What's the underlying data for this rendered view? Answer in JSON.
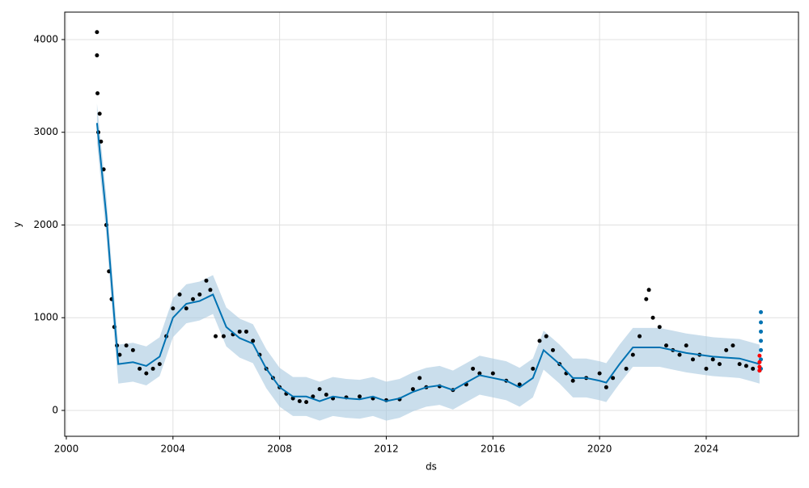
{
  "chart_data": {
    "type": "forecast",
    "xlabel": "ds",
    "ylabel": "y",
    "xlim": [
      1999.94,
      2027.46
    ],
    "ylim": [
      -279,
      4296
    ],
    "xticks": [
      2000,
      2004,
      2008,
      2012,
      2016,
      2020,
      2024
    ],
    "yticks": [
      0,
      1000,
      2000,
      3000,
      4000
    ],
    "grid": true,
    "band_color": "#a6c8e0",
    "series": [
      {
        "mark": "points",
        "color": "#000000",
        "x": [
          2001.15,
          2001.15,
          2001.17,
          2001.2,
          2001.25,
          2001.3,
          2001.4,
          2001.5,
          2001.6,
          2001.7,
          2001.8,
          2001.9,
          2002.0,
          2002.25,
          2002.5,
          2002.75,
          2003.0,
          2003.25,
          2003.5,
          2003.75,
          2004.0,
          2004.25,
          2004.5,
          2004.75,
          2005.0,
          2005.25,
          2005.4,
          2005.6,
          2005.9,
          2006.25,
          2006.5,
          2006.75,
          2007.0,
          2007.25,
          2007.5,
          2007.75,
          2008.0,
          2008.25,
          2008.5,
          2008.75,
          2009.0,
          2009.25,
          2009.5,
          2009.75,
          2010.0,
          2010.5,
          2011.0,
          2011.5,
          2012.0,
          2012.5,
          2013.0,
          2013.25,
          2013.5,
          2014.0,
          2014.5,
          2015.0,
          2015.25,
          2015.5,
          2016.0,
          2016.5,
          2017.0,
          2017.5,
          2017.75,
          2018.0,
          2018.25,
          2018.5,
          2018.75,
          2019.0,
          2019.5,
          2020.0,
          2020.25,
          2020.5,
          2021.0,
          2021.25,
          2021.5,
          2021.75,
          2021.85,
          2022.0,
          2022.25,
          2022.5,
          2022.75,
          2023.0,
          2023.25,
          2023.5,
          2023.75,
          2024.0,
          2024.25,
          2024.5,
          2024.75,
          2025.0,
          2025.25,
          2025.5,
          2025.75,
          2026.0
        ],
        "values": [
          4080,
          3830,
          3420,
          3000,
          3200,
          2900,
          2600,
          2000,
          1500,
          1200,
          900,
          700,
          600,
          700,
          650,
          450,
          400,
          450,
          500,
          800,
          1100,
          1250,
          1100,
          1200,
          1250,
          1400,
          1300,
          800,
          800,
          820,
          850,
          850,
          750,
          600,
          450,
          350,
          250,
          180,
          130,
          100,
          90,
          150,
          230,
          170,
          130,
          140,
          150,
          130,
          110,
          120,
          230,
          350,
          250,
          260,
          220,
          280,
          450,
          400,
          400,
          320,
          280,
          450,
          750,
          800,
          650,
          500,
          400,
          320,
          350,
          400,
          250,
          350,
          450,
          600,
          800,
          1200,
          1300,
          1000,
          900,
          700,
          650,
          600,
          700,
          550,
          600,
          450,
          550,
          500,
          650,
          700,
          500,
          480,
          450,
          430
        ]
      },
      {
        "mark": "line",
        "color": "#0072B2",
        "x": [
          2001.15,
          2001.5,
          2001.8,
          2001.95,
          2002.5,
          2003,
          2003.5,
          2004,
          2004.5,
          2005,
          2005.5,
          2006,
          2006.5,
          2007,
          2007.5,
          2008,
          2008.5,
          2009,
          2009.5,
          2010,
          2010.5,
          2011,
          2011.5,
          2012,
          2012.5,
          2013,
          2013.5,
          2014,
          2014.5,
          2015,
          2015.5,
          2016,
          2016.5,
          2017,
          2017.5,
          2017.9,
          2018.5,
          2019,
          2019.5,
          2020,
          2020.25,
          2020.75,
          2021.25,
          2021.75,
          2022.25,
          2022.75,
          2023.25,
          2023.75,
          2024.25,
          2024.75,
          2025.25,
          2025.75,
          2026
        ],
        "values": [
          3100,
          2100,
          1000,
          500,
          520,
          480,
          580,
          1000,
          1150,
          1180,
          1250,
          900,
          780,
          720,
          450,
          250,
          150,
          150,
          100,
          150,
          130,
          120,
          150,
          100,
          130,
          200,
          250,
          270,
          220,
          300,
          380,
          350,
          320,
          250,
          350,
          650,
          500,
          350,
          350,
          320,
          300,
          500,
          680,
          680,
          680,
          650,
          620,
          600,
          580,
          570,
          560,
          520,
          500
        ],
        "lower": [
          2890,
          1890,
          790,
          290,
          310,
          270,
          370,
          790,
          940,
          970,
          1040,
          690,
          570,
          510,
          240,
          40,
          -60,
          -60,
          -110,
          -60,
          -80,
          -90,
          -60,
          -110,
          -80,
          -10,
          40,
          60,
          10,
          90,
          170,
          140,
          110,
          40,
          140,
          440,
          290,
          140,
          140,
          110,
          90,
          290,
          470,
          470,
          470,
          440,
          410,
          390,
          370,
          360,
          350,
          310,
          290
        ],
        "upper": [
          3310,
          2310,
          1210,
          710,
          730,
          690,
          790,
          1210,
          1360,
          1390,
          1460,
          1110,
          990,
          930,
          660,
          460,
          360,
          360,
          310,
          360,
          340,
          330,
          360,
          310,
          340,
          410,
          460,
          480,
          430,
          510,
          590,
          560,
          530,
          460,
          560,
          860,
          710,
          560,
          560,
          530,
          510,
          710,
          890,
          890,
          890,
          860,
          830,
          810,
          790,
          780,
          770,
          730,
          710
        ]
      },
      {
        "mark": "points",
        "color": "#0072B2",
        "x": [
          2026.05,
          2026.05,
          2026.05,
          2026.05,
          2026.05,
          2026.05,
          2026.05
        ],
        "values": [
          450,
          550,
          650,
          750,
          850,
          950,
          1060
        ]
      },
      {
        "mark": "points",
        "color": "#ff0000",
        "x": [
          2026.0,
          2026.0,
          2026.0,
          2026.0
        ],
        "values": [
          430,
          470,
          520,
          590
        ]
      }
    ]
  }
}
